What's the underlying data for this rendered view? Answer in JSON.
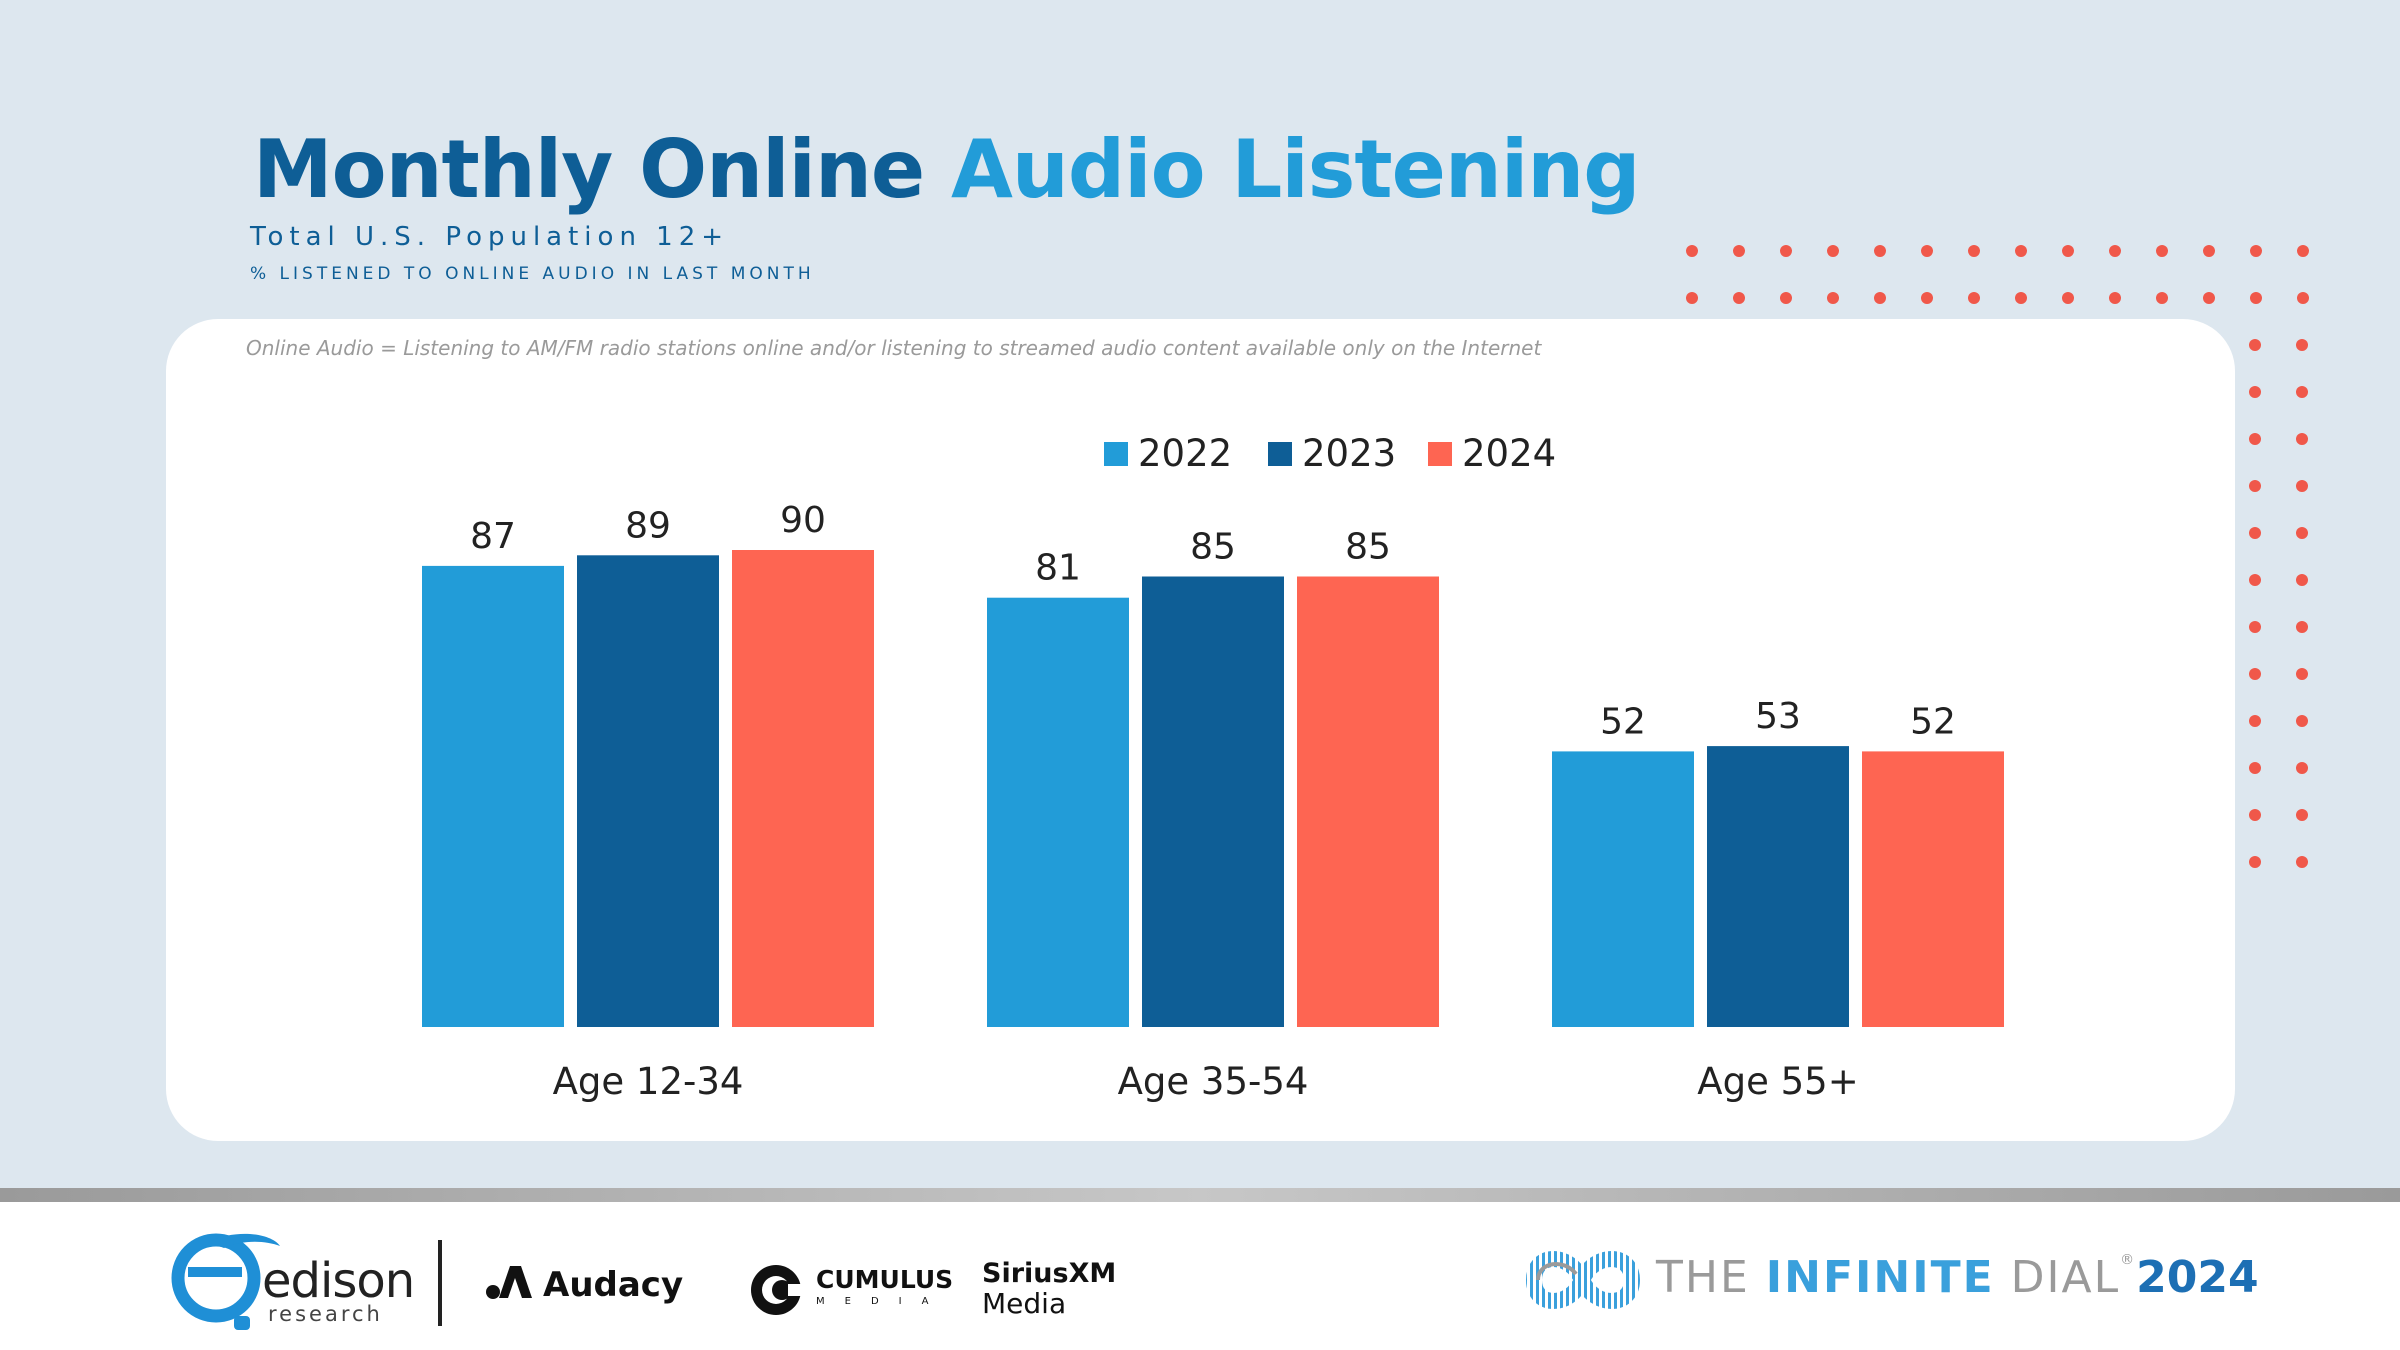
{
  "title": {
    "part1": "Monthly Online",
    "part2": "Audio Listening"
  },
  "subtitle": "Total U.S. Population 12+",
  "subtitle2": "% LISTENED TO ONLINE AUDIO IN LAST MONTH",
  "footnote": "Online Audio = Listening to AM/FM radio stations online and/or listening to streamed audio content available only on the Internet",
  "colors": {
    "background": "#dde7ef",
    "accent_dots": "#f0584a",
    "title_dark": "#0e5e96",
    "title_light": "#229cd8"
  },
  "chart_data": {
    "type": "bar",
    "categories": [
      "Age 12-34",
      "Age 35-54",
      "Age 55+"
    ],
    "series": [
      {
        "name": "2022",
        "color": "#229cd8",
        "values": [
          87,
          81,
          52
        ]
      },
      {
        "name": "2023",
        "color": "#0e5e96",
        "values": [
          89,
          85,
          53
        ]
      },
      {
        "name": "2024",
        "color": "#fe6552",
        "values": [
          90,
          85,
          52
        ]
      }
    ],
    "ylim": [
      0,
      100
    ],
    "grid": false,
    "legend_position": "top-center",
    "data_labels": true
  },
  "footer": {
    "logos": {
      "edison_name": "edison",
      "edison_sub": "research",
      "audacy": "Audacy",
      "cumulus_name": "CUMULUS",
      "cumulus_sub": "MEDIA",
      "sirius_name": "SiriusXM",
      "sirius_sub": "Media"
    },
    "dial": {
      "the": "THE ",
      "infinite": "INFINITE",
      "dial": " DIAL",
      "reg": "®",
      "year": "2024"
    }
  }
}
